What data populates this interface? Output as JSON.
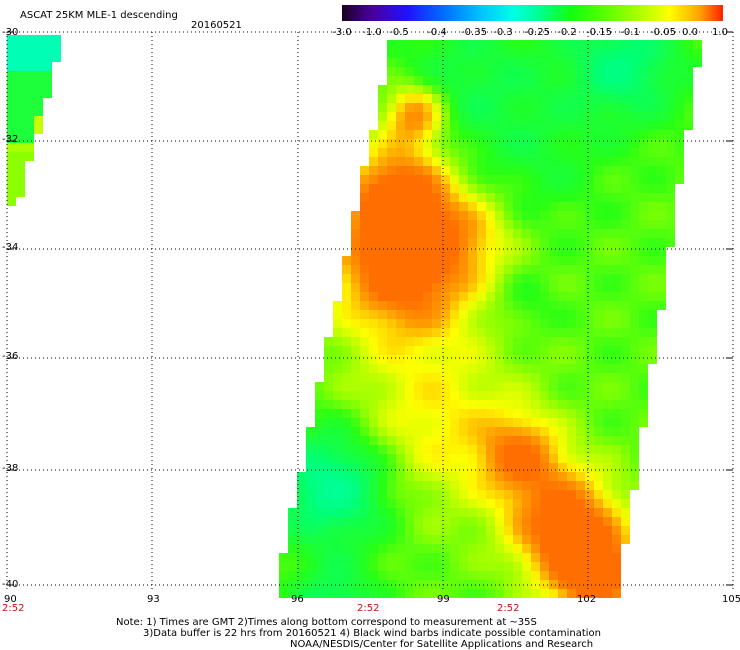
{
  "header": {
    "title": "ASCAT 25KM MLE-1 descending",
    "date": "20160521"
  },
  "colorbar": {
    "labels": [
      "-3.0",
      "-1.0",
      "-0.5",
      "-0.4",
      "-0.35",
      "-0.3",
      "-0.25",
      "-0.2",
      "-0.15",
      "-0.1",
      "-0.05",
      "0.0",
      "1.0"
    ],
    "colors": [
      "#1a0020",
      "#4a00a0",
      "#2010ff",
      "#0070ff",
      "#00c8ff",
      "#00ffe0",
      "#00ff90",
      "#10ff10",
      "#60ff00",
      "#c0ff00",
      "#ffff00",
      "#ffa000",
      "#ff2000"
    ]
  },
  "map": {
    "lat_labels": [
      "-30",
      "-32",
      "-34",
      "-36",
      "-38",
      "-40"
    ],
    "lon_labels": [
      "90",
      "93",
      "96",
      "99",
      "102",
      "105"
    ],
    "time_labels": [
      "2:52",
      "2:52",
      "2:52"
    ]
  },
  "notes": {
    "line1": "Note: 1) Times are GMT 2)Times along bottom correspond to measurement at ~35S",
    "line2": "3)Data buffer is 22 hrs from 20160521 4) Black wind barbs indicate possible contamination",
    "line3": "NOAA/NESDIS/Center for Satellite Applications and Research"
  }
}
